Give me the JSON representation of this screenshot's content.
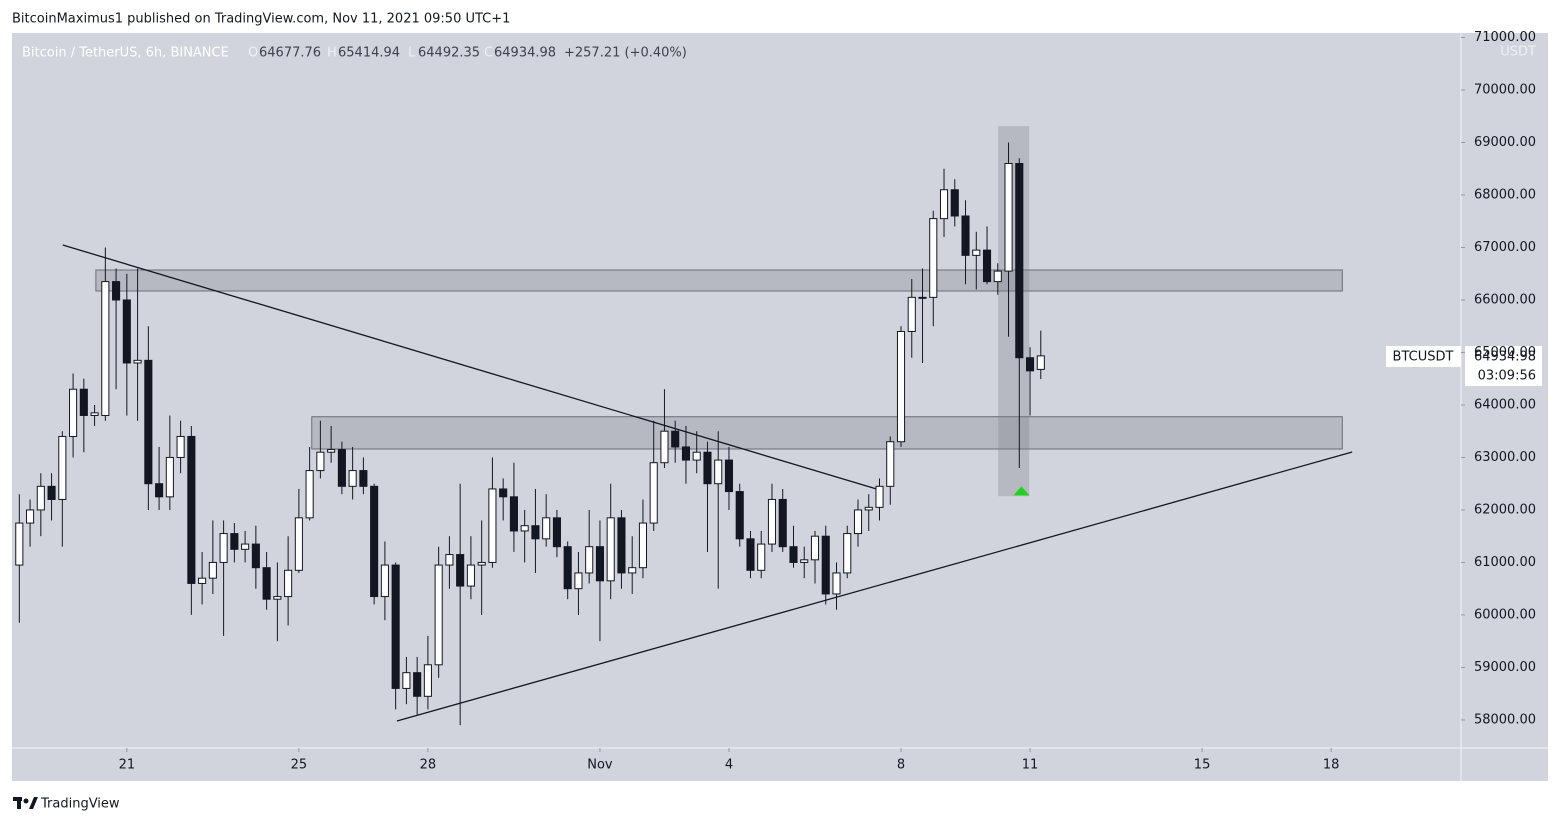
{
  "header": "BitcoinMaximus1 published on TradingView.com, Nov 11, 2021 09:50 UTC+1",
  "footer": "TradingView",
  "chart_data": {
    "type": "candlestick",
    "legend": {
      "name": "Bitcoin / TetherUS, 6h, BINANCE",
      "labels": [
        "O",
        "H",
        "L",
        "C"
      ],
      "change": "+257.21 (+0.40%)"
    },
    "symbol": "BTCUSDT",
    "y_unit": "USDT",
    "countdown": "03:09:56",
    "up_color": "#ffffff",
    "down_color": "#131722",
    "x": [
      18.5,
      18.75,
      19,
      19.25,
      19.5,
      19.75,
      20,
      20.25,
      20.5,
      20.75,
      21,
      21.25,
      21.5,
      21.75,
      22,
      22.25,
      22.5,
      22.75,
      23,
      23.25,
      23.5,
      23.75,
      24,
      24.25,
      24.5,
      24.75,
      25,
      25.25,
      25.5,
      25.75,
      26,
      26.25,
      26.5,
      26.75,
      27,
      27.25,
      27.5,
      27.75,
      28,
      28.25,
      28.5,
      28.75,
      29,
      29.25,
      29.5,
      29.75,
      30,
      30.25,
      30.5,
      30.75,
      31,
      31.25,
      31.5,
      31.75,
      32,
      32.25,
      32.5,
      32.75,
      33,
      33.25,
      33.5,
      33.75,
      34,
      34.25,
      34.5,
      34.75,
      35,
      35.25,
      35.5,
      35.75,
      36,
      36.25,
      36.5,
      36.75,
      37,
      37.25,
      37.5,
      37.75,
      38,
      38.25,
      38.5,
      38.75,
      39,
      39.25,
      39.5,
      39.75,
      40,
      40.25,
      40.5,
      40.75,
      41,
      41.25,
      41.5,
      41.75,
      42,
      42.25
    ],
    "open": [
      60950,
      61750,
      62000,
      62450,
      62200,
      63400,
      64300,
      63800,
      63800,
      66350,
      66000,
      64800,
      64850,
      62500,
      62250,
      63000,
      63400,
      60600,
      60700,
      61000,
      61550,
      61250,
      61350,
      60900,
      60300,
      60350,
      60850,
      61850,
      62750,
      63100,
      63150,
      62450,
      62750,
      62450,
      60350,
      60950,
      58600,
      58900,
      58450,
      59050,
      60950,
      61150,
      60550,
      60950,
      61000,
      62400,
      62250,
      61600,
      61700,
      61450,
      61850,
      61300,
      60500,
      60800,
      61300,
      60650,
      61850,
      60800,
      60900,
      61750,
      62900,
      63500,
      63200,
      62950,
      63100,
      62500,
      62950,
      62350,
      61450,
      60850,
      61350,
      62200,
      61300,
      61000,
      61050,
      61500,
      60400,
      60800,
      61550,
      62000,
      62050,
      62450,
      63300,
      65400,
      66050,
      66050,
      67550,
      68100,
      67600,
      66850,
      66950,
      66350,
      66550,
      68600,
      64900,
      64677.76
    ],
    "high": [
      62300,
      62200,
      62700,
      62700,
      63500,
      64600,
      64500,
      64000,
      67000,
      66600,
      66500,
      66600,
      65500,
      63200,
      63800,
      63700,
      63600,
      61200,
      61800,
      61800,
      61750,
      61600,
      61700,
      61200,
      61000,
      61500,
      62400,
      63200,
      63700,
      63600,
      63300,
      63200,
      63000,
      62500,
      61400,
      61000,
      59200,
      59200,
      59600,
      61300,
      61500,
      62500,
      61500,
      61800,
      63000,
      62600,
      62900,
      62000,
      62400,
      62300,
      62000,
      61400,
      61200,
      62000,
      61800,
      62500,
      62000,
      61500,
      62200,
      63700,
      64300,
      63700,
      63600,
      63500,
      63300,
      63500,
      63200,
      62500,
      61600,
      61600,
      62500,
      62400,
      61700,
      61300,
      61600,
      61700,
      61000,
      61700,
      62200,
      62300,
      62600,
      63400,
      65500,
      66400,
      66600,
      67700,
      68500,
      68300,
      67900,
      67300,
      67400,
      66700,
      69000,
      68700,
      65100,
      65414.94
    ],
    "low": [
      59850,
      61300,
      61500,
      61800,
      61300,
      63000,
      63100,
      63600,
      63700,
      64300,
      63800,
      63700,
      62000,
      62000,
      62000,
      62700,
      60000,
      60200,
      60400,
      59600,
      61000,
      61000,
      60500,
      60100,
      59500,
      59800,
      60800,
      61800,
      62600,
      62900,
      62300,
      62200,
      62300,
      60200,
      59900,
      58200,
      58300,
      58100,
      58200,
      58800,
      60500,
      57900,
      60300,
      60000,
      60900,
      61800,
      61200,
      61000,
      60800,
      61300,
      61100,
      60300,
      60000,
      60600,
      59500,
      60300,
      60500,
      60400,
      60700,
      61600,
      62800,
      62900,
      62500,
      62700,
      61200,
      60500,
      62000,
      61300,
      60700,
      60700,
      61200,
      61200,
      60900,
      60700,
      60600,
      60200,
      60100,
      60700,
      61300,
      61600,
      61800,
      62100,
      63200,
      64900,
      64800,
      65500,
      67200,
      67400,
      66300,
      66200,
      66300,
      66100,
      65300,
      62800,
      63800,
      64492.35
    ],
    "close": [
      61750,
      62000,
      62450,
      62200,
      63400,
      64300,
      63800,
      63850,
      66350,
      66000,
      64800,
      64850,
      62500,
      62250,
      63000,
      63400,
      60600,
      60700,
      61000,
      61550,
      61250,
      61350,
      60900,
      60300,
      60350,
      60850,
      61850,
      62750,
      63100,
      63150,
      62450,
      62750,
      62450,
      60350,
      60950,
      58600,
      58900,
      58450,
      59050,
      60950,
      61150,
      60550,
      60950,
      61000,
      62400,
      62250,
      61600,
      61700,
      61450,
      61850,
      61300,
      60500,
      60800,
      61300,
      60650,
      61850,
      60800,
      60900,
      61750,
      62900,
      63500,
      63200,
      62950,
      63100,
      62500,
      62950,
      62350,
      61450,
      60850,
      61350,
      62200,
      61300,
      61000,
      61050,
      61500,
      60400,
      60800,
      61550,
      62000,
      62050,
      62450,
      63300,
      65400,
      66050,
      66050,
      67550,
      68100,
      67600,
      66850,
      66950,
      66350,
      66550,
      68600,
      64900,
      64650,
      64934.98
    ],
    "xlim": [
      18.33,
      52.02
    ],
    "ylim": [
      57465,
      71086
    ],
    "xticks": [
      21,
      25,
      28,
      {
        "value": 32,
        "label": "Nov"
      },
      {
        "value": 35,
        "label": "4"
      },
      {
        "value": 39,
        "label": "8"
      },
      {
        "value": 42,
        "label": "11"
      },
      {
        "value": 46,
        "label": "15"
      },
      {
        "value": 49,
        "label": "18"
      }
    ],
    "yticks": [
      {
        "value": 58000,
        "label": "58000.00"
      },
      {
        "value": 59000,
        "label": "59000.00"
      },
      {
        "value": 60000,
        "label": "60000.00"
      },
      {
        "value": 61000,
        "label": "61000.00"
      },
      {
        "value": 62000,
        "label": "62000.00"
      },
      {
        "value": 63000,
        "label": "63000.00"
      },
      {
        "value": 64000,
        "label": "64000.00"
      },
      {
        "value": 65000,
        "label": "65000.00"
      },
      {
        "value": 66000,
        "label": "66000.00"
      },
      {
        "value": 67000,
        "label": "67000.00"
      },
      {
        "value": 68000,
        "label": "68000.00"
      },
      {
        "value": 69000,
        "label": "69000.00"
      },
      {
        "value": 70000,
        "label": "70000.00"
      },
      {
        "value": 71000,
        "label": "71000.00"
      }
    ],
    "zones": [
      {
        "x": [
          20.28,
          49.26
        ],
        "y": [
          66171,
          66571
        ]
      },
      {
        "x": [
          25.3,
          49.26
        ],
        "y": [
          63161,
          63776
        ]
      }
    ],
    "trend_lines": [
      {
        "x": [
          19.51,
          38.51
        ],
        "y": [
          67047,
          62380
        ]
      },
      {
        "x": [
          27.28,
          49.49
        ],
        "y": [
          57980,
          63104
        ]
      }
    ],
    "highlight": {
      "x": [
        41.26,
        41.98
      ],
      "y": [
        62262,
        69311
      ]
    },
    "arrow": {
      "x": 41.8,
      "y": 62450,
      "color": "#22d11c"
    }
  }
}
